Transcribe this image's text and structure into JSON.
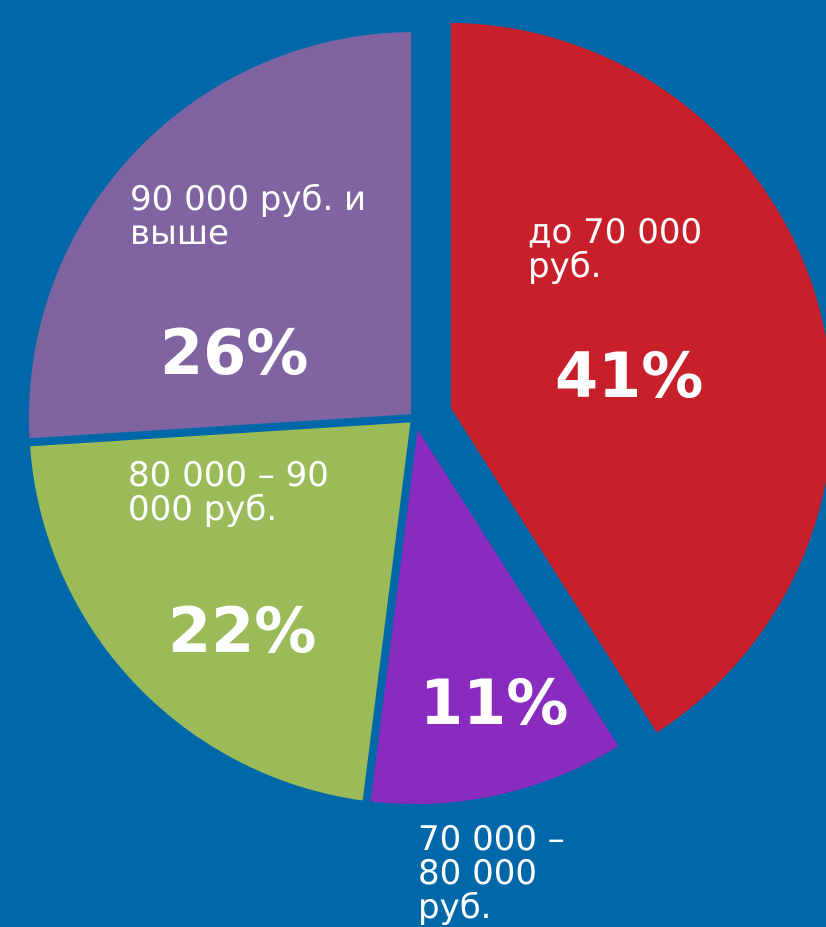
{
  "chart_data": {
    "type": "pie",
    "categories": [
      "до 70 000 руб.",
      "70 000 – 80 000 руб.",
      "80 000 – 90 000 руб.",
      "90 000 руб. и выше"
    ],
    "values": [
      41,
      11,
      22,
      26
    ],
    "value_labels": [
      "41%",
      "11%",
      "22%",
      "26%"
    ],
    "colors": [
      "#c8202a",
      "#8a2bc0",
      "#9bbb59",
      "#8064a2"
    ],
    "exploded": [
      true,
      false,
      false,
      false
    ]
  }
}
